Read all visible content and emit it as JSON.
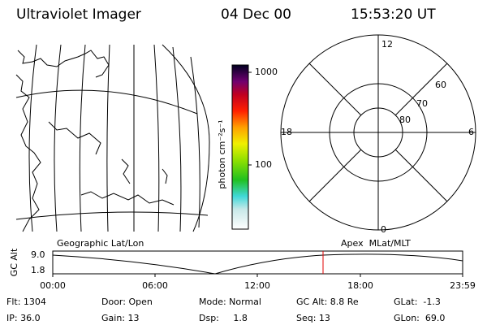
{
  "header": {
    "title": "Ultraviolet Imager",
    "date": "04 Dec 00",
    "time": "15:53:20 UT"
  },
  "colorbar": {
    "label": "photon cm⁻²s⁻¹",
    "ticks": [
      "1000",
      "100"
    ]
  },
  "polar": {
    "mlt_labels": [
      "12",
      "6",
      "0",
      "18"
    ],
    "lat_labels": [
      "60",
      "70",
      "80"
    ]
  },
  "timeline": {
    "left_label": "Geographic Lat/Lon",
    "right_label": "Apex  MLat/MLT",
    "axis_label": "GC Alt",
    "y_labels": [
      "9.0",
      "1.8"
    ],
    "x_labels": [
      "00:00",
      "06:00",
      "12:00",
      "18:00",
      "23:59"
    ]
  },
  "info": {
    "rows": [
      [
        "Flt: 1304",
        "Door: Open",
        "Mode: Normal",
        "GC Alt: 8.8 Re",
        "GLat:  -1.3"
      ],
      [
        "IP: 36.0",
        "Gain: 13",
        "Dsp:     1.8",
        "Seq: 13",
        "GLon:  69.0"
      ]
    ]
  }
}
